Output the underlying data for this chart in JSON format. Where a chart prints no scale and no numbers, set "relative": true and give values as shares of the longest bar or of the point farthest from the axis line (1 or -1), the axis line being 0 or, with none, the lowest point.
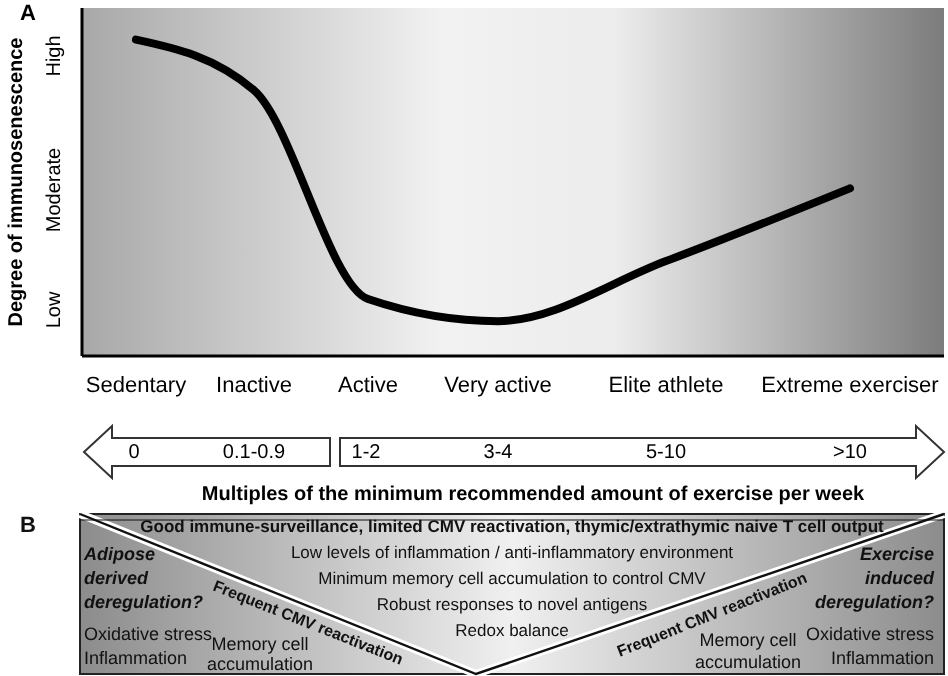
{
  "chart_data": [
    {
      "type": "line",
      "categories": [
        "Sedentary",
        "Inactive",
        "Active",
        "Very active",
        "Elite athlete",
        "Extreme exerciser"
      ],
      "relative": true,
      "ylabel": "Degree of immunosenescence",
      "xlabel": "Multiples of the minimum recommended amount of exercise per week",
      "series": [
        {
          "color": "#000000",
          "values": [
            1,
            0.84,
            0.18,
            0.11,
            0.3,
            0.53
          ]
        }
      ],
      "annotations": [
        "A",
        "High",
        "Moderate",
        "Low",
        "0",
        "0.1-0.9",
        "1-2",
        "3-4",
        "5-10",
        ">10"
      ]
    },
    {
      "type": "other",
      "annotations": [
        "B",
        "Good immune-surveillance, limited CMV reactivation, thymic/extrathymic naive T cell output",
        "Low levels of inflammation / anti-inflammatory environment",
        "Minimum memory cell accumulation to control CMV",
        "Robust responses to novel antigens",
        "Redox balance",
        "Adipose",
        "derived",
        "deregulation?",
        "Oxidative stress",
        "Inflammation",
        "Memory cell",
        "accumulation",
        "Frequent CMV reactivation",
        "Frequent CMV reactivation",
        "Exercise",
        "induced",
        "deregulation?",
        "Memory cell",
        "accumulation",
        "Oxidative stress",
        "Inflammation"
      ]
    }
  ]
}
